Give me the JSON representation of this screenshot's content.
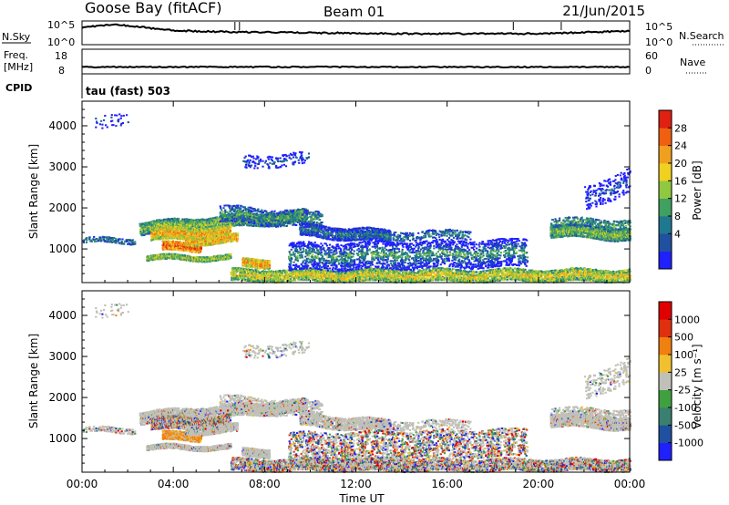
{
  "header": {
    "station": "Goose Bay (fitACF)",
    "beam": "Beam 01",
    "date": "21/Jun/2015"
  },
  "colors": {
    "power_scale": [
      "#2020ff",
      "#2050a0",
      "#207890",
      "#40a060",
      "#90c840",
      "#f0d020",
      "#f0a020",
      "#f06010",
      "#e02010"
    ],
    "velocity_scale": [
      "#2020ff",
      "#2050a0",
      "#3a8070",
      "#40a040",
      "#c0c0b8",
      "#f0c030",
      "#f08010",
      "#e03010",
      "#e00000"
    ],
    "trace": "#000000"
  },
  "chart_data": [
    {
      "type": "line",
      "panel": "sky-search-noise",
      "left_label": "N.Sky",
      "right_label": "N.Search",
      "left_ticks": [
        "10^5",
        "10^0"
      ],
      "right_ticks": [
        "10^5",
        "10^0"
      ]
    },
    {
      "type": "line",
      "panel": "frequency-nave",
      "left_label_top": "Freq.",
      "left_label_bottom": "[MHz]",
      "left_ticks": [
        "18",
        "8"
      ],
      "right_label": "Nave",
      "right_ticks": [
        "60",
        "0"
      ],
      "cpid_label": "CPID",
      "cpid_value": "tau (fast) 503"
    },
    {
      "type": "heatmap",
      "panel": "power",
      "ylabel": "Slant Range [km]",
      "yticks": [
        "4000",
        "3000",
        "2000",
        "1000"
      ],
      "ylim": [
        180,
        4600
      ],
      "colorbar_label": "Power [dB]",
      "colorbar_ticks": [
        "28",
        "24",
        "20",
        "16",
        "12",
        "8",
        "4"
      ],
      "colorbar_range": [
        0,
        32
      ]
    },
    {
      "type": "heatmap",
      "panel": "velocity",
      "ylabel": "Slant Range [km]",
      "yticks": [
        "4000",
        "3000",
        "2000",
        "1000"
      ],
      "ylim": [
        180,
        4600
      ],
      "colorbar_label": "Velocity [m s⁻¹]",
      "colorbar_ticks": [
        "1000",
        "500",
        "100",
        "25",
        "-25",
        "-100",
        "-500",
        "-1000"
      ]
    }
  ],
  "time_axis": {
    "xlabel": "Time UT",
    "ticks": [
      "00:00",
      "04:00",
      "08:00",
      "12:00",
      "16:00",
      "20:00",
      "00:00"
    ],
    "range_hours": [
      0,
      24
    ]
  }
}
